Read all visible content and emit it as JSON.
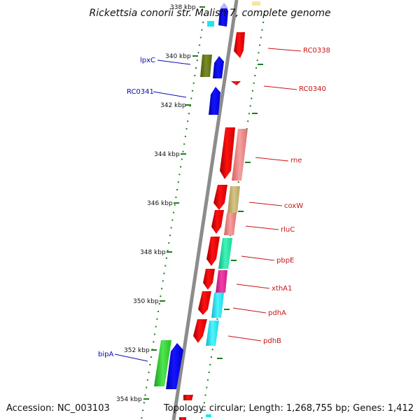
{
  "header": {
    "title": "Rickettsia conorii str. Malish 7, complete genome"
  },
  "footer": {
    "accession": "Accession: NC_003103",
    "topology": "Topology: circular; Length: 1,268,755 bp; Genes: 1,412"
  },
  "scale": {
    "ticks": [
      {
        "label": "338 kbp",
        "kbp": 338
      },
      {
        "label": "340 kbp",
        "kbp": 340
      },
      {
        "label": "342 kbp",
        "kbp": 342
      },
      {
        "label": "344 kbp",
        "kbp": 344
      },
      {
        "label": "346 kbp",
        "kbp": 346
      },
      {
        "label": "348 kbp",
        "kbp": 348
      },
      {
        "label": "350 kbp",
        "kbp": 350
      },
      {
        "label": "352 kbp",
        "kbp": 352
      },
      {
        "label": "354 kbp",
        "kbp": 354
      }
    ]
  },
  "gene_labels": {
    "left": [
      {
        "name": "lpxC"
      },
      {
        "name": "RC0341"
      },
      {
        "name": "bipA"
      }
    ],
    "right": [
      {
        "name": "RC0338"
      },
      {
        "name": "RC0340"
      },
      {
        "name": "rne"
      },
      {
        "name": "coxW"
      },
      {
        "name": "rluC"
      },
      {
        "name": "pbpE"
      },
      {
        "name": "xthA1"
      },
      {
        "name": "pdhA"
      },
      {
        "name": "pdhB"
      }
    ]
  },
  "colors": {
    "backbone": "#8c8c8c",
    "forward_strand": "#ee0000",
    "reverse_strand": "#0000ee",
    "tick_green": "#1e7d1e",
    "label_blue": "#0a0ab4",
    "label_red": "#c81414",
    "cog_olive": "#6b7d1e",
    "cog_salmon": "#f08080",
    "cog_khaki": "#c8b46e",
    "cog_teal": "#18e6a0",
    "cog_magenta": "#e61e96",
    "cog_cyan": "#1ee6f0",
    "cog_green": "#2ed22e",
    "cog_lavender": "#b4b4ff",
    "cog_yellow": "#f5e6a0"
  }
}
